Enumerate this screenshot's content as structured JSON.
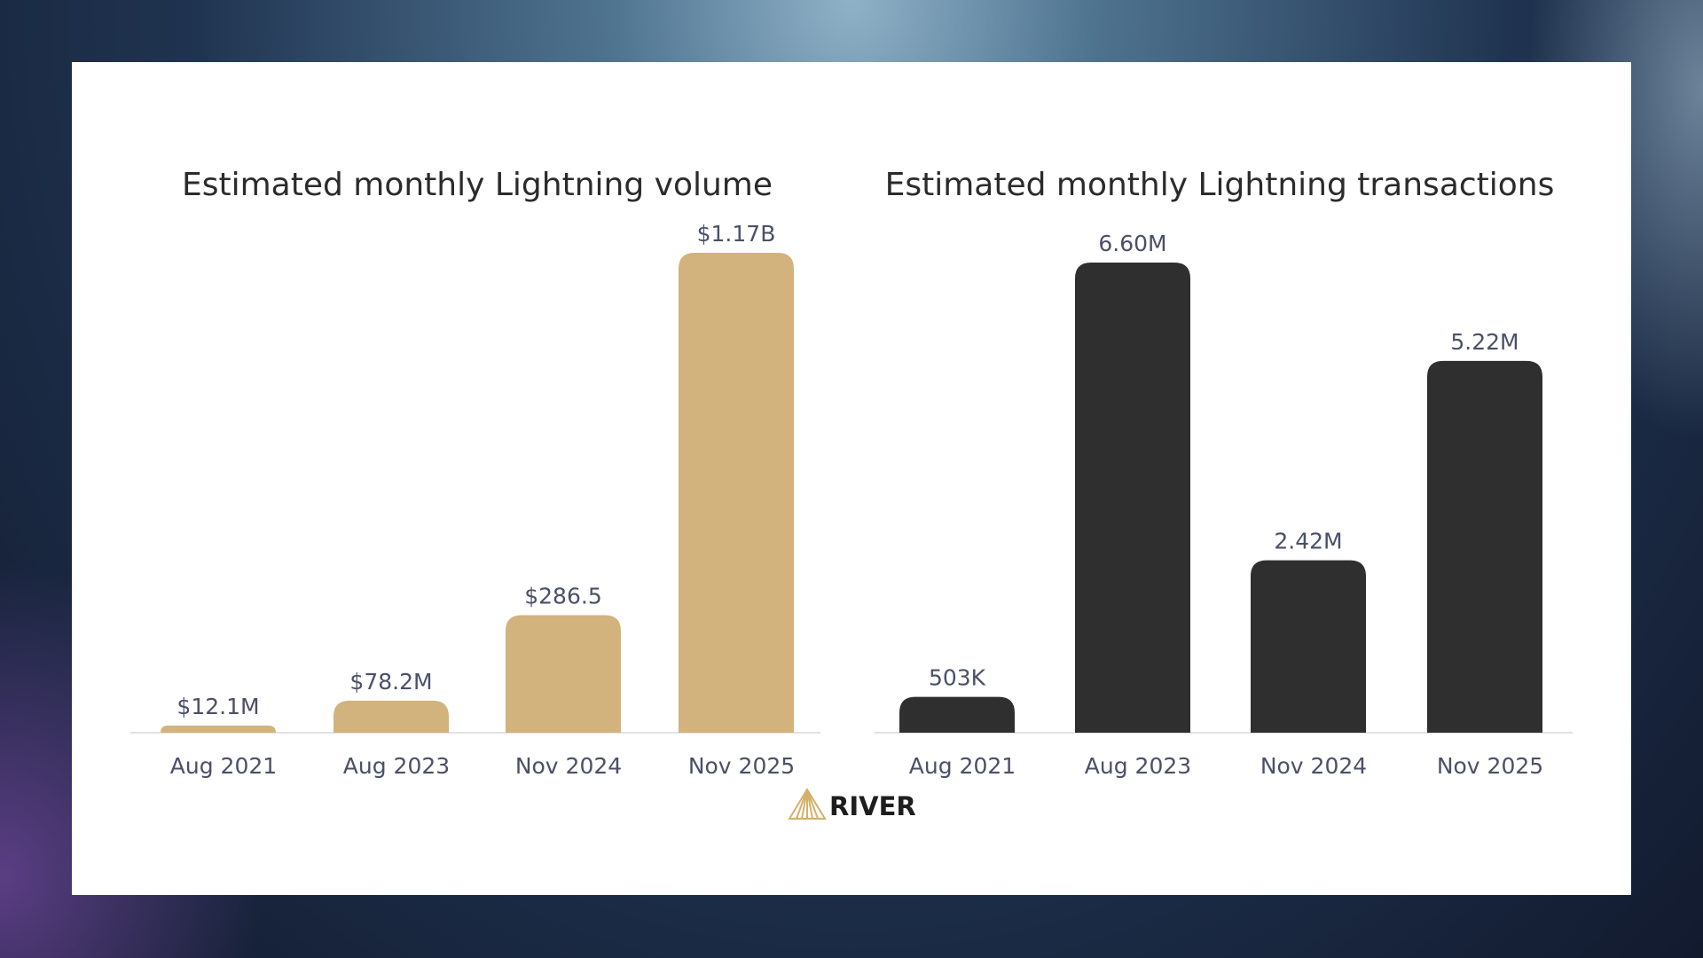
{
  "brand": {
    "logo_text": "RIVER",
    "logo_color": "#d4b06a"
  },
  "chart_data": [
    {
      "type": "bar",
      "title": "Estimated monthly Lightning volume",
      "categories": [
        "Aug 2021",
        "Aug 2023",
        "Nov 2024",
        "Nov 2025"
      ],
      "values": [
        12.1,
        78.2,
        286.5,
        1170
      ],
      "unit": "USD millions",
      "data_labels": [
        "$12.1M",
        "$78.2M",
        "$286.5",
        "$1.17B"
      ],
      "color": "#d2b37e",
      "grid": false,
      "legend": "none"
    },
    {
      "type": "bar",
      "title": "Estimated monthly Lightning transactions",
      "categories": [
        "Aug 2021",
        "Aug 2023",
        "Nov 2024",
        "Nov 2025"
      ],
      "values": [
        0.503,
        6.6,
        2.42,
        5.22
      ],
      "unit": "millions",
      "data_labels": [
        "503K",
        "6.60M",
        "2.42M",
        "5.22M"
      ],
      "color": "#2f2f2f",
      "grid": false,
      "legend": "none"
    }
  ]
}
